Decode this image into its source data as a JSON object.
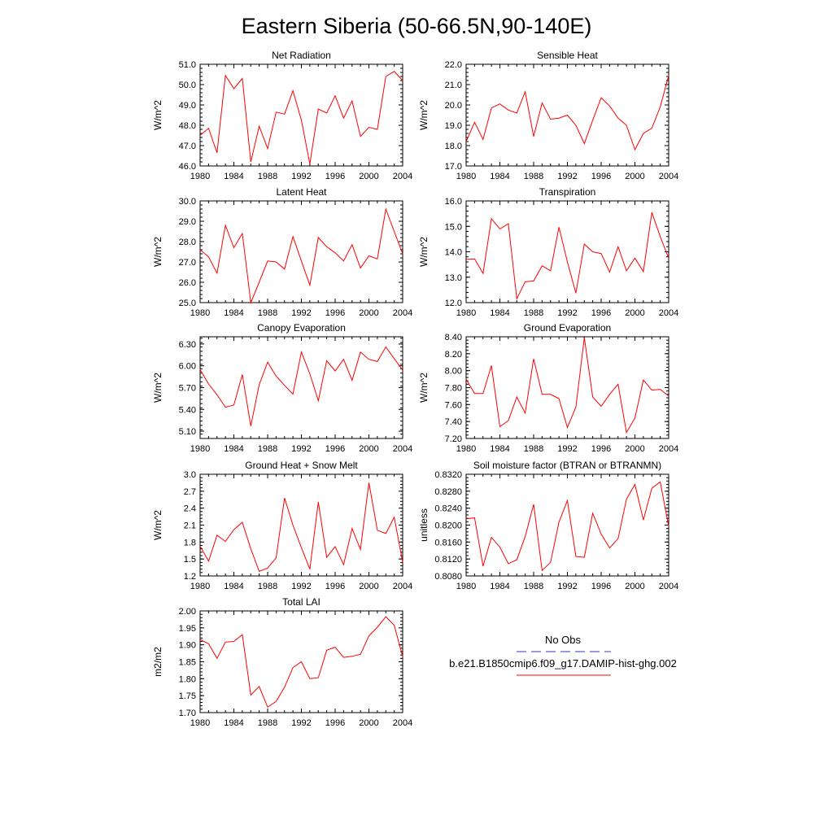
{
  "title": "Eastern Siberia (50-66.5N,90-140E)",
  "legend": {
    "items": [
      {
        "label": "No Obs",
        "color": "#3333cc",
        "style": "dashed"
      },
      {
        "label": "b.e21.B1850cmip6.f09_g17.DAMIP-hist-ghg.002",
        "color": "#ff0000",
        "style": "solid"
      }
    ]
  },
  "chart_data": [
    {
      "type": "line",
      "title": "Net Radiation",
      "ylabel": "W/m^2",
      "xlim": [
        1980,
        2004
      ],
      "ylim": [
        46.0,
        51.0
      ],
      "xticks": [
        "1980",
        "1984",
        "1988",
        "1992",
        "1996",
        "2000",
        "2004"
      ],
      "yticks": [
        "46.0",
        "47.0",
        "48.0",
        "49.0",
        "50.0",
        "51.0"
      ],
      "x": [
        1980,
        1981,
        1982,
        1983,
        1984,
        1985,
        1986,
        1987,
        1988,
        1989,
        1990,
        1991,
        1992,
        1993,
        1994,
        1995,
        1996,
        1997,
        1998,
        1999,
        2000,
        2001,
        2002,
        2003,
        2004
      ],
      "series": [
        {
          "color": "#ff0000",
          "values": [
            47.5,
            47.85,
            46.65,
            50.45,
            49.8,
            50.3,
            46.2,
            47.95,
            46.85,
            48.65,
            48.55,
            49.7,
            48.25,
            46.1,
            48.8,
            48.6,
            49.45,
            48.35,
            49.2,
            47.45,
            47.9,
            47.8,
            50.4,
            50.65,
            50.2
          ]
        }
      ]
    },
    {
      "type": "line",
      "title": "Sensible Heat",
      "ylabel": "W/m^2",
      "xlim": [
        1980,
        2004
      ],
      "ylim": [
        17.0,
        22.0
      ],
      "xticks": [
        "1980",
        "1984",
        "1988",
        "1992",
        "1996",
        "2000",
        "2004"
      ],
      "yticks": [
        "17.0",
        "18.0",
        "19.0",
        "20.0",
        "21.0",
        "22.0"
      ],
      "x": [
        1980,
        1981,
        1982,
        1983,
        1984,
        1985,
        1986,
        1987,
        1988,
        1989,
        1990,
        1991,
        1992,
        1993,
        1994,
        1995,
        1996,
        1997,
        1998,
        1999,
        2000,
        2001,
        2002,
        2003,
        2004
      ],
      "series": [
        {
          "color": "#ff0000",
          "values": [
            18.2,
            19.15,
            18.3,
            19.85,
            20.05,
            19.75,
            19.6,
            20.65,
            18.45,
            20.1,
            19.3,
            19.35,
            19.5,
            19.0,
            18.1,
            19.25,
            20.35,
            19.95,
            19.35,
            19.0,
            17.8,
            18.6,
            18.85,
            19.9,
            21.45
          ]
        }
      ]
    },
    {
      "type": "line",
      "title": "Latent Heat",
      "ylabel": "W/m^2",
      "xlim": [
        1980,
        2004
      ],
      "ylim": [
        25.0,
        30.0
      ],
      "xticks": [
        "1980",
        "1984",
        "1988",
        "1992",
        "1996",
        "2000",
        "2004"
      ],
      "yticks": [
        "25.0",
        "26.0",
        "27.0",
        "28.0",
        "29.0",
        "30.0"
      ],
      "x": [
        1980,
        1981,
        1982,
        1983,
        1984,
        1985,
        1986,
        1987,
        1988,
        1989,
        1990,
        1991,
        1992,
        1993,
        1994,
        1995,
        1996,
        1997,
        1998,
        1999,
        2000,
        2001,
        2002,
        2003,
        2004
      ],
      "series": [
        {
          "color": "#ff0000",
          "values": [
            27.6,
            27.25,
            26.45,
            28.8,
            27.7,
            28.4,
            25.0,
            26.0,
            27.05,
            27.0,
            26.65,
            28.25,
            27.05,
            25.85,
            28.2,
            27.75,
            27.45,
            27.05,
            27.85,
            26.7,
            27.3,
            27.15,
            29.6,
            28.5,
            27.4
          ]
        }
      ]
    },
    {
      "type": "line",
      "title": "Transpiration",
      "ylabel": "W/m^2",
      "xlim": [
        1980,
        2004
      ],
      "ylim": [
        12.0,
        16.0
      ],
      "xticks": [
        "1980",
        "1984",
        "1988",
        "1992",
        "1996",
        "2000",
        "2004"
      ],
      "yticks": [
        "12.0",
        "13.0",
        "14.0",
        "15.0",
        "16.0"
      ],
      "x": [
        1980,
        1981,
        1982,
        1983,
        1984,
        1985,
        1986,
        1987,
        1988,
        1989,
        1990,
        1991,
        1992,
        1993,
        1994,
        1995,
        1996,
        1997,
        1998,
        1999,
        2000,
        2001,
        2002,
        2003,
        2004
      ],
      "series": [
        {
          "color": "#ff0000",
          "values": [
            13.7,
            13.72,
            13.15,
            15.3,
            14.9,
            15.1,
            12.15,
            12.82,
            12.85,
            13.45,
            13.25,
            14.97,
            13.6,
            12.37,
            14.3,
            14.0,
            13.93,
            13.2,
            14.2,
            13.25,
            13.75,
            13.22,
            15.55,
            14.6,
            13.75
          ]
        }
      ]
    },
    {
      "type": "line",
      "title": "Canopy Evaporation",
      "ylabel": "W/m^2",
      "xlim": [
        1980,
        2004
      ],
      "ylim": [
        5.0,
        6.4
      ],
      "xticks": [
        "1980",
        "1984",
        "1988",
        "1992",
        "1996",
        "2000",
        "2004"
      ],
      "yticks": [
        "5.10",
        "5.40",
        "5.70",
        "6.00",
        "6.30"
      ],
      "x": [
        1980,
        1981,
        1982,
        1983,
        1984,
        1985,
        1986,
        1987,
        1988,
        1989,
        1990,
        1991,
        1992,
        1993,
        1994,
        1995,
        1996,
        1997,
        1998,
        1999,
        2000,
        2001,
        2002,
        2003,
        2004
      ],
      "series": [
        {
          "color": "#ff0000",
          "values": [
            5.95,
            5.75,
            5.6,
            5.43,
            5.46,
            5.88,
            5.17,
            5.74,
            6.05,
            5.86,
            5.73,
            5.61,
            6.19,
            5.89,
            5.52,
            6.07,
            5.93,
            6.09,
            5.8,
            6.19,
            6.09,
            6.06,
            6.26,
            6.1,
            5.94
          ]
        }
      ]
    },
    {
      "type": "line",
      "title": "Ground Evaporation",
      "ylabel": "W/m^2",
      "xlim": [
        1980,
        2004
      ],
      "ylim": [
        7.2,
        8.4
      ],
      "xticks": [
        "1980",
        "1984",
        "1988",
        "1992",
        "1996",
        "2000",
        "2004"
      ],
      "yticks": [
        "7.20",
        "7.40",
        "7.60",
        "7.80",
        "8.00",
        "8.20",
        "8.40"
      ],
      "x": [
        1980,
        1981,
        1982,
        1983,
        1984,
        1985,
        1986,
        1987,
        1988,
        1989,
        1990,
        1991,
        1992,
        1993,
        1994,
        1995,
        1996,
        1997,
        1998,
        1999,
        2000,
        2001,
        2002,
        2003,
        2004
      ],
      "series": [
        {
          "color": "#ff0000",
          "values": [
            7.9,
            7.73,
            7.73,
            8.06,
            7.34,
            7.41,
            7.69,
            7.5,
            8.14,
            7.72,
            7.72,
            7.67,
            7.33,
            7.57,
            8.39,
            7.69,
            7.58,
            7.72,
            7.84,
            7.27,
            7.44,
            7.89,
            7.77,
            7.78,
            7.7
          ]
        }
      ]
    },
    {
      "type": "line",
      "title": "Ground Heat + Snow Melt",
      "ylabel": "W/m^2",
      "xlim": [
        1980,
        2004
      ],
      "ylim": [
        1.2,
        3.0
      ],
      "xticks": [
        "1980",
        "1984",
        "1988",
        "1992",
        "1996",
        "2000",
        "2004"
      ],
      "yticks": [
        "1.2",
        "1.5",
        "1.8",
        "2.1",
        "2.4",
        "2.7",
        "3.0"
      ],
      "x": [
        1980,
        1981,
        1982,
        1983,
        1984,
        1985,
        1986,
        1987,
        1988,
        1989,
        1990,
        1991,
        1992,
        1993,
        1994,
        1995,
        1996,
        1997,
        1998,
        1999,
        2000,
        2001,
        2002,
        2003,
        2004
      ],
      "series": [
        {
          "color": "#ff0000",
          "values": [
            1.73,
            1.46,
            1.92,
            1.81,
            2.02,
            2.15,
            1.68,
            1.28,
            1.34,
            1.52,
            2.58,
            2.1,
            1.7,
            1.32,
            2.51,
            1.53,
            1.72,
            1.4,
            2.04,
            1.67,
            2.85,
            2.01,
            1.95,
            2.24,
            1.44
          ]
        }
      ]
    },
    {
      "type": "line",
      "title": "Soil moisture factor (BTRAN or BTRANMN)",
      "ylabel": "unitless",
      "xlim": [
        1980,
        2004
      ],
      "ylim": [
        0.808,
        0.832
      ],
      "xticks": [
        "1980",
        "1984",
        "1988",
        "1992",
        "1996",
        "2000",
        "2004"
      ],
      "yticks": [
        "0.8080",
        "0.8120",
        "0.8160",
        "0.8200",
        "0.8240",
        "0.8280",
        "0.8320"
      ],
      "x": [
        1980,
        1981,
        1982,
        1983,
        1984,
        1985,
        1986,
        1987,
        1988,
        1989,
        1990,
        1991,
        1992,
        1993,
        1994,
        1995,
        1996,
        1997,
        1998,
        1999,
        2000,
        2001,
        2002,
        2003,
        2004
      ],
      "series": [
        {
          "color": "#ff0000",
          "values": [
            0.8215,
            0.8217,
            0.8103,
            0.8171,
            0.8148,
            0.8109,
            0.8118,
            0.8173,
            0.8249,
            0.8093,
            0.8112,
            0.8207,
            0.8258,
            0.8126,
            0.8124,
            0.8228,
            0.8179,
            0.8146,
            0.8168,
            0.8261,
            0.8296,
            0.8212,
            0.8287,
            0.8302,
            0.8197
          ]
        }
      ]
    },
    {
      "type": "line",
      "title": "Total LAI",
      "ylabel": "m2/m2",
      "xlim": [
        1980,
        2004
      ],
      "ylim": [
        1.7,
        2.0
      ],
      "xticks": [
        "1980",
        "1984",
        "1988",
        "1992",
        "1996",
        "2000",
        "2004"
      ],
      "yticks": [
        "1.70",
        "1.75",
        "1.80",
        "1.85",
        "1.90",
        "1.95",
        "2.00"
      ],
      "x": [
        1980,
        1981,
        1982,
        1983,
        1984,
        1985,
        1986,
        1987,
        1988,
        1989,
        1990,
        1991,
        1992,
        1993,
        1994,
        1995,
        1996,
        1997,
        1998,
        1999,
        2000,
        2001,
        2002,
        2003,
        2004
      ],
      "series": [
        {
          "color": "#ff0000",
          "values": [
            1.916,
            1.903,
            1.86,
            1.908,
            1.91,
            1.93,
            1.752,
            1.777,
            1.716,
            1.733,
            1.775,
            1.833,
            1.85,
            1.8,
            1.803,
            1.884,
            1.893,
            1.863,
            1.866,
            1.872,
            1.926,
            1.952,
            1.983,
            1.958,
            1.865
          ]
        }
      ]
    }
  ]
}
